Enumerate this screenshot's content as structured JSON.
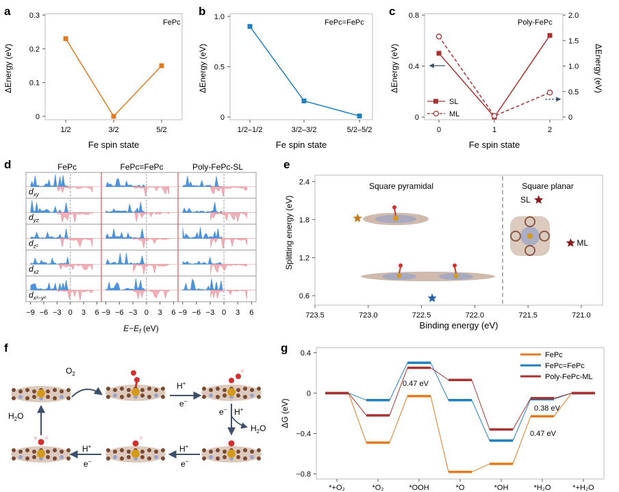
{
  "panels": {
    "a": {
      "letter": "a",
      "tag": "FePc",
      "ylabel": "ΔEnergy (eV)",
      "xlabel": "Fe spin state",
      "yticks": [
        "0",
        "0.1",
        "0.2",
        "0.3"
      ],
      "xticks": [
        "1/2",
        "3/2",
        "5/2"
      ]
    },
    "b": {
      "letter": "b",
      "tag": "FePc=FePc",
      "ylabel": "ΔEnergy (eV)",
      "xlabel": "Fe spin state",
      "yticks": [
        "0",
        "0.5",
        "1.0"
      ],
      "xticks": [
        "1/2–1/2",
        "3/2–3/2",
        "5/2–5/2"
      ]
    },
    "c": {
      "letter": "c",
      "tag": "Poly-FePc",
      "ylabel": "ΔEnergy (eV)",
      "ylabel_right": "ΔEnergy (eV)",
      "xlabel": "Fe spin state",
      "yticks": [
        "0",
        "0.4",
        "0.8"
      ],
      "yticks_right": [
        "0",
        "0.5",
        "1.0",
        "1.5",
        "2.0"
      ],
      "xticks": [
        "0",
        "1",
        "2"
      ],
      "legend_sl": "SL",
      "legend_ml": "ML"
    },
    "d": {
      "letter": "d",
      "col1": "FePc",
      "col2": "FePc=FePc",
      "col3": "Poly-FePc-SL",
      "xticks": [
        "−9",
        "−6",
        "−3",
        "0",
        "3",
        "6"
      ],
      "xlabel_main": "E−E",
      "xlabel_sub": "f",
      "xlabel_unit": " (eV)",
      "orbitals": [
        {
          "base": "d",
          "sub": "xy"
        },
        {
          "base": "d",
          "sub": "yz"
        },
        {
          "base": "d",
          "sub": "z²"
        },
        {
          "base": "d",
          "sub": "xz"
        },
        {
          "base": "d",
          "sub": "x²−y²"
        }
      ]
    },
    "e": {
      "letter": "e",
      "left_label": "Square pyramidal",
      "right_label": "Square planar",
      "ylabel": "Splitting energy (eV)",
      "xlabel": "Binding energy (eV)",
      "yticks": [
        "0.6",
        "1.2",
        "1.8",
        "2.4"
      ],
      "xticks": [
        "723.5",
        "723.0",
        "722.5",
        "722.0",
        "721.5",
        "721.0"
      ],
      "sl": "SL",
      "ml": "ML"
    },
    "f": {
      "letter": "f",
      "o2": "O",
      "o2_sub": "2",
      "h1": "H",
      "h_sup": "+",
      "e1": "e",
      "e_sup": "−",
      "h2o_a": "H",
      "h2o_sub": "2",
      "h2o_b": "O"
    },
    "g": {
      "letter": "g",
      "ylabel": "ΔG (eV)",
      "yticks": [
        "0.4",
        "0",
        "−0.4",
        "−0.8"
      ],
      "xticks": [
        "*+O₂",
        "*O₂",
        "*OOH",
        "*O",
        "*OH",
        "*H₂O",
        "*+H₂O"
      ],
      "ann1": "0.47 eV",
      "ann2": "0.38 eV",
      "ann3": "0.47 eV"
    }
  },
  "chart_data": [
    {
      "panel": "a",
      "type": "line",
      "title": "FePc",
      "xlabel": "Fe spin state",
      "ylabel": "ΔEnergy (eV)",
      "categories": [
        "1/2",
        "3/2",
        "5/2"
      ],
      "values": [
        0.23,
        0.0,
        0.15
      ],
      "ylim": [
        0,
        0.3
      ],
      "color": "#e07b20"
    },
    {
      "panel": "b",
      "type": "line",
      "title": "FePc=FePc",
      "xlabel": "Fe spin state",
      "ylabel": "ΔEnergy (eV)",
      "categories": [
        "1/2–1/2",
        "3/2–3/2",
        "5/2–5/2"
      ],
      "values": [
        0.9,
        0.16,
        0.01
      ],
      "ylim": [
        0,
        1.0
      ],
      "color": "#1f7fbf"
    },
    {
      "panel": "c",
      "type": "line",
      "title": "Poly-FePc",
      "xlabel": "Fe spin state",
      "categories": [
        "0",
        "1",
        "2"
      ],
      "series": [
        {
          "name": "SL",
          "axis": "left",
          "values": [
            0.5,
            0.0,
            0.64
          ],
          "ylim": [
            0,
            0.8
          ]
        },
        {
          "name": "ML",
          "axis": "right",
          "values": [
            1.58,
            0.02,
            0.48
          ],
          "ylim": [
            0,
            2.0
          ]
        }
      ],
      "color": "#a83232"
    },
    {
      "panel": "e",
      "type": "scatter",
      "xlabel": "Binding energy (eV)",
      "ylabel": "Splitting energy (eV)",
      "xlim": [
        723.5,
        720.8
      ],
      "ylim": [
        0.45,
        2.5
      ],
      "points": [
        {
          "name": "square-pyramidal-orange",
          "x": 723.1,
          "y": 1.82,
          "color": "#c47a1e"
        },
        {
          "name": "square-pyramidal-blue",
          "x": 722.4,
          "y": 0.56,
          "color": "#2566a8"
        },
        {
          "name": "SL",
          "x": 721.4,
          "y": 2.11,
          "color": "#8b1a1a"
        },
        {
          "name": "ML",
          "x": 721.1,
          "y": 1.43,
          "color": "#8b1a1a"
        }
      ]
    },
    {
      "panel": "g",
      "type": "line",
      "ylabel": "ΔG (eV)",
      "categories": [
        "*+O₂",
        "*O₂",
        "*OOH",
        "*O",
        "*OH",
        "*H₂O",
        "*+H₂O"
      ],
      "ylim": [
        -0.85,
        0.45
      ],
      "series": [
        {
          "name": "FePc",
          "color": "#e07b20",
          "values": [
            0,
            -0.49,
            -0.03,
            -0.78,
            -0.7,
            -0.23,
            0
          ]
        },
        {
          "name": "FePc=FePc",
          "color": "#1f7fbf",
          "values": [
            0,
            -0.07,
            0.3,
            -0.07,
            -0.47,
            -0.06,
            0
          ]
        },
        {
          "name": "Poly-FePc-ML",
          "color": "#a83232",
          "values": [
            0,
            -0.22,
            0.25,
            0.13,
            -0.36,
            -0.05,
            0
          ]
        }
      ]
    }
  ]
}
